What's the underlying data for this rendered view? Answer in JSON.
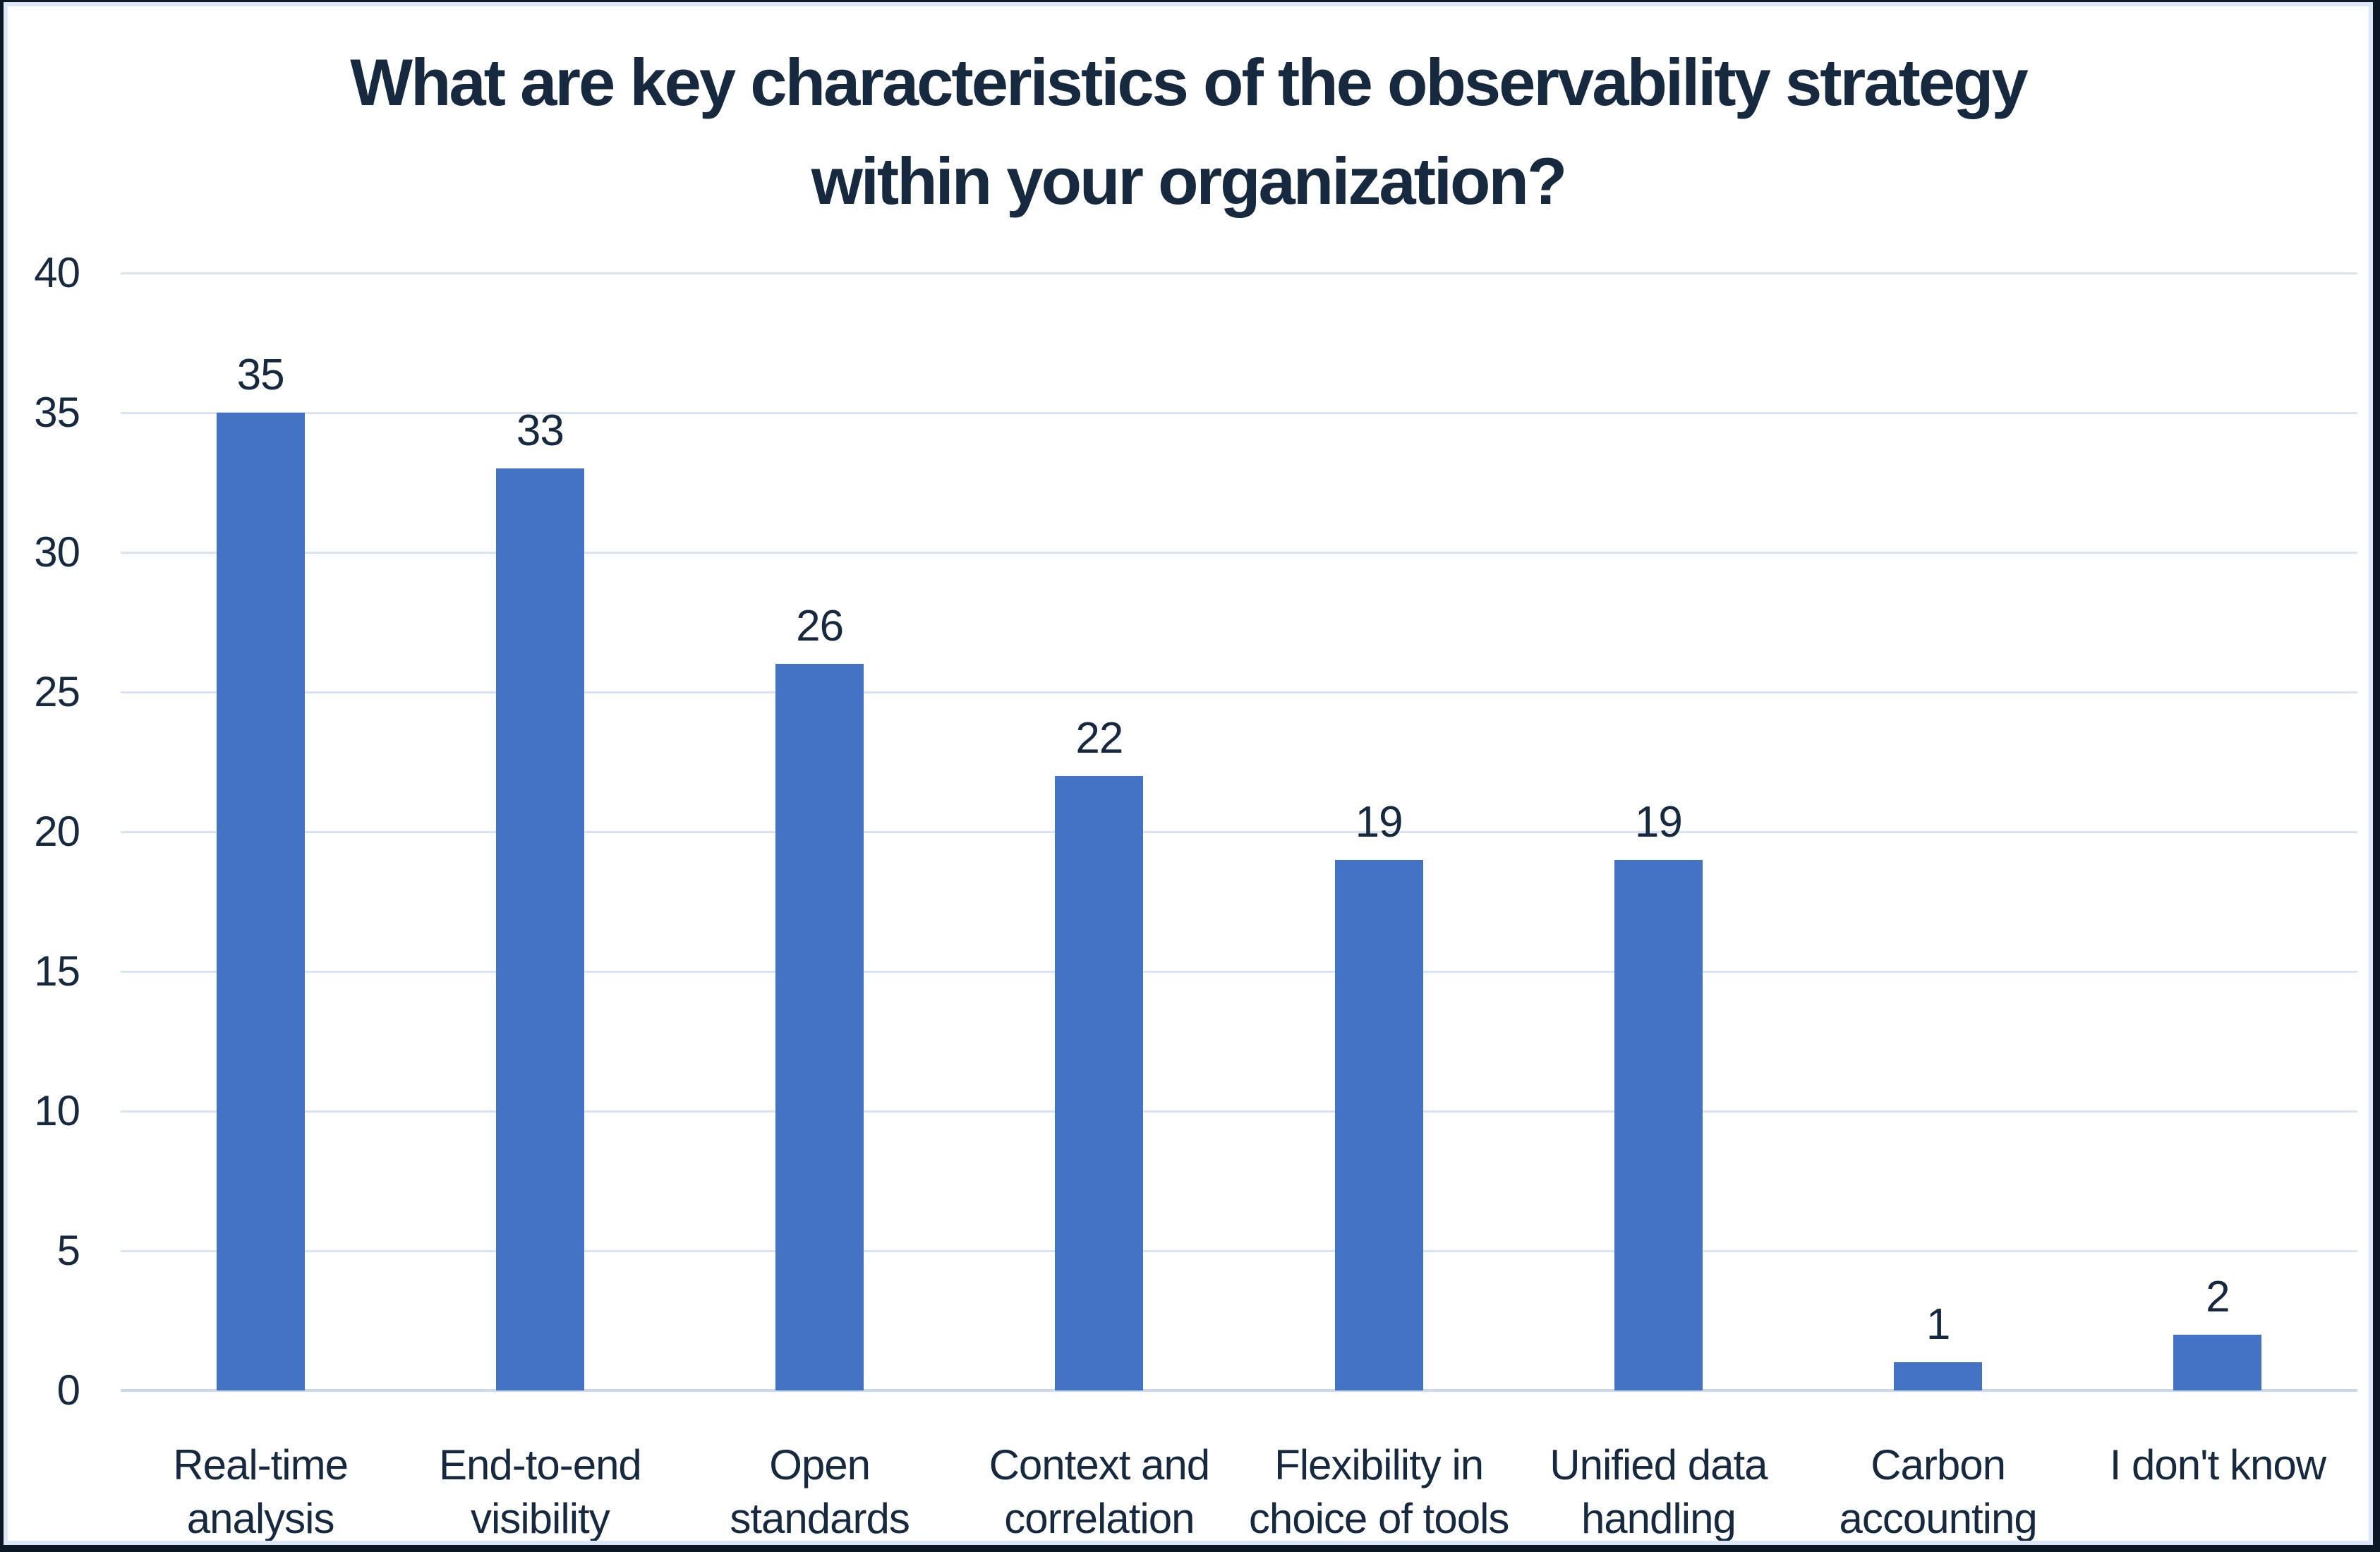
{
  "frame": {
    "outer_border_color": "#0c1726",
    "inner_border_color": "#dbe6f6",
    "background_color": "#ffffff"
  },
  "chart_data": {
    "type": "bar",
    "title": "What are key characteristics of the observability strategy within your organization?",
    "title_lines": [
      "What are key characteristics of the observability strategy",
      "within your organization?"
    ],
    "categories": [
      {
        "label": "Real-time analysis",
        "lines": [
          "Real-time",
          "analysis"
        ]
      },
      {
        "label": "End-to-end visibility",
        "lines": [
          "End-to-end",
          "visibility"
        ]
      },
      {
        "label": "Open standards",
        "lines": [
          "Open",
          "standards"
        ]
      },
      {
        "label": "Context and correlation",
        "lines": [
          "Context and",
          "correlation"
        ]
      },
      {
        "label": "Flexibility in choice of tools",
        "lines": [
          "Flexibility in",
          "choice of tools"
        ]
      },
      {
        "label": "Unified data handling",
        "lines": [
          "Unified data",
          "handling"
        ]
      },
      {
        "label": "Carbon accounting",
        "lines": [
          "Carbon",
          "accounting"
        ]
      },
      {
        "label": "I don't know",
        "lines": [
          "I don't know"
        ]
      }
    ],
    "values": [
      35,
      33,
      26,
      22,
      19,
      19,
      1,
      2
    ],
    "yticks": [
      0,
      5,
      10,
      15,
      20,
      25,
      30,
      35,
      40
    ],
    "ylim": [
      0,
      40
    ],
    "xlabel": "",
    "ylabel": "",
    "legend": "none",
    "grid": "horizontal",
    "bar_color": "#4472C4",
    "gridline_color": "#dae3f4",
    "axis_line_color": "#cbd9ef",
    "text_color": "#16293e"
  }
}
